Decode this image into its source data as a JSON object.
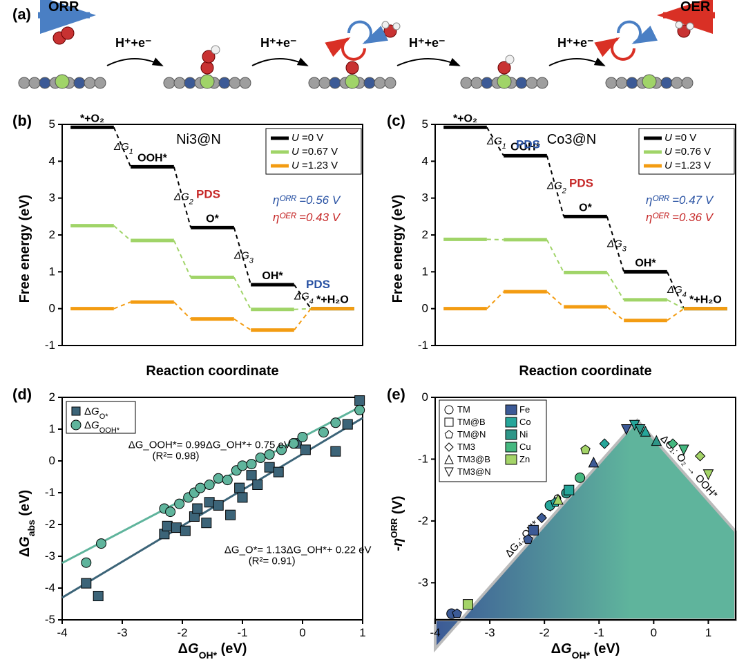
{
  "panel_a": {
    "label": "(a)",
    "orr_label": "ORR",
    "oer_label": "OER",
    "step_label": "H⁺+e⁻",
    "orr_arrow_color": "#4a7fc4",
    "oer_arrow_color": "#d93025",
    "atom_colors": {
      "oxygen": "#c83232",
      "hydrogen": "#f0f0f0",
      "metal": "#a0d468",
      "nitrogen": "#3c5a96",
      "carbon": "#9e9e9e"
    }
  },
  "panel_b": {
    "label": "(b)",
    "title": "Ni3@N",
    "xlabel": "Reaction coordinate",
    "ylabel": "Free energy (eV)",
    "ylim": [
      -1,
      5
    ],
    "yticks": [
      -1,
      0,
      1,
      2,
      3,
      4,
      5
    ],
    "legend": [
      {
        "label": "U =0 V",
        "color": "#000000"
      },
      {
        "label": "U =0.67 V",
        "color": "#a0d468"
      },
      {
        "label": "U =1.23 V",
        "color": "#f39c12"
      }
    ],
    "species": [
      "*+O₂",
      "OOH*",
      "O*",
      "OH*",
      "*+H₂O"
    ],
    "dg_labels": [
      "ΔG₁",
      "ΔG₂",
      "ΔG₃",
      "ΔG₄"
    ],
    "pds_orr_label": "PDS",
    "pds_oer_label": "PDS",
    "eta_orr": "ηᴼᴿᴿ =0.56 V",
    "eta_oer": "ηᴼᴱᴿ =0.43 V",
    "eta_orr_color": "#2952a3",
    "eta_oer_color": "#c62828",
    "series": {
      "U0": [
        4.92,
        3.85,
        2.2,
        0.65,
        0.0
      ],
      "U067": [
        2.25,
        1.85,
        0.85,
        -0.02,
        0.0
      ],
      "U123": [
        0.0,
        0.18,
        -0.28,
        -0.58,
        0.0
      ]
    },
    "colors": {
      "U0": "#000000",
      "U067": "#a0d468",
      "U123": "#f39c12"
    },
    "grid_color": "#e0e0e0",
    "line_width": 4
  },
  "panel_c": {
    "label": "(c)",
    "title": "Co3@N",
    "xlabel": "Reaction coordinate",
    "ylabel": "Free energy (eV)",
    "ylim": [
      -1,
      5
    ],
    "yticks": [
      -1,
      0,
      1,
      2,
      3,
      4,
      5
    ],
    "legend": [
      {
        "label": "U =0 V",
        "color": "#000000"
      },
      {
        "label": "U =0.76 V",
        "color": "#a0d468"
      },
      {
        "label": "U =1.23 V",
        "color": "#f39c12"
      }
    ],
    "species": [
      "*+O₂",
      "OOH*",
      "O*",
      "OH*",
      "*+H₂O"
    ],
    "dg_labels": [
      "ΔG₁",
      "ΔG₂",
      "ΔG₃",
      "ΔG₄"
    ],
    "pds_orr_label": "PDS",
    "pds_oer_label": "PDS",
    "eta_orr": "ηᴼᴿᴿ =0.47 V",
    "eta_oer": "ηᴼᴱᴿ =0.36 V",
    "eta_orr_color": "#2952a3",
    "eta_oer_color": "#c62828",
    "series": {
      "U0": [
        4.92,
        4.15,
        2.5,
        1.0,
        0.0
      ],
      "U076": [
        1.88,
        1.87,
        0.98,
        0.24,
        0.0
      ],
      "U123": [
        0.0,
        0.46,
        0.05,
        -0.32,
        0.0
      ]
    },
    "colors": {
      "U0": "#000000",
      "U076": "#a0d468",
      "U123": "#f39c12"
    },
    "grid_color": "#e0e0e0",
    "line_width": 4
  },
  "panel_d": {
    "label": "(d)",
    "xlabel": "ΔG_OH* (eV)",
    "ylabel": "ΔG_abs (eV)",
    "xlim": [
      -4,
      1
    ],
    "ylim": [
      -5,
      2
    ],
    "xticks": [
      -4,
      -3,
      -2,
      -1,
      0,
      1
    ],
    "yticks": [
      -5,
      -4,
      -3,
      -2,
      -1,
      0,
      1,
      2
    ],
    "legend": [
      {
        "label": "ΔG_O*",
        "marker": "square",
        "color": "#3c6478"
      },
      {
        "label": "ΔG_OOH*",
        "marker": "circle",
        "color": "#5fb49c"
      }
    ],
    "fit_ooh": "ΔG_OOH*= 0.99ΔG_OH*+ 0.75 eV",
    "fit_ooh_r2": "(R²= 0.98)",
    "fit_o": "ΔG_O*= 1.13ΔG_OH*+ 0.22 eV",
    "fit_o_r2": "(R²= 0.91)",
    "line_o": {
      "slope": 1.13,
      "intercept": 0.22,
      "color": "#3c6478"
    },
    "line_ooh": {
      "slope": 0.99,
      "intercept": 0.75,
      "color": "#5fb49c"
    },
    "points_o": [
      [
        -3.6,
        -3.85
      ],
      [
        -3.4,
        -4.25
      ],
      [
        -2.3,
        -2.3
      ],
      [
        -2.25,
        -2.05
      ],
      [
        -2.1,
        -2.1
      ],
      [
        -1.95,
        -2.2
      ],
      [
        -1.8,
        -1.75
      ],
      [
        -1.75,
        -1.5
      ],
      [
        -1.6,
        -1.95
      ],
      [
        -1.55,
        -1.3
      ],
      [
        -1.4,
        -1.4
      ],
      [
        -1.2,
        -1.7
      ],
      [
        -1.05,
        -0.85
      ],
      [
        -1.0,
        -1.15
      ],
      [
        -0.85,
        -0.45
      ],
      [
        -0.75,
        -0.75
      ],
      [
        -0.55,
        -0.2
      ],
      [
        -0.4,
        -0.35
      ],
      [
        -0.1,
        0.55
      ],
      [
        0.05,
        0.35
      ],
      [
        0.55,
        0.3
      ],
      [
        0.95,
        1.9
      ],
      [
        0.75,
        1.15
      ]
    ],
    "points_ooh": [
      [
        -3.6,
        -3.2
      ],
      [
        -3.35,
        -2.6
      ],
      [
        -2.3,
        -1.5
      ],
      [
        -2.2,
        -1.6
      ],
      [
        -2.05,
        -1.35
      ],
      [
        -1.9,
        -1.15
      ],
      [
        -1.8,
        -1.0
      ],
      [
        -1.7,
        -0.85
      ],
      [
        -1.55,
        -0.75
      ],
      [
        -1.4,
        -0.55
      ],
      [
        -1.25,
        -0.6
      ],
      [
        -1.1,
        -0.3
      ],
      [
        -1.0,
        -0.15
      ],
      [
        -0.85,
        -0.1
      ],
      [
        -0.7,
        0.1
      ],
      [
        -0.55,
        0.2
      ],
      [
        -0.35,
        0.35
      ],
      [
        -0.15,
        0.55
      ],
      [
        0.0,
        0.75
      ],
      [
        0.35,
        0.9
      ],
      [
        0.55,
        1.2
      ],
      [
        0.95,
        1.6
      ]
    ],
    "marker_size": 7
  },
  "panel_e": {
    "label": "(e)",
    "xlabel": "ΔG_OH* (eV)",
    "ylabel": "-ηᴼᴿᴿ (V)",
    "xlim": [
      -4,
      1.5
    ],
    "ylim": [
      -3.6,
      0
    ],
    "xticks": [
      -4,
      -3,
      -2,
      -1,
      0,
      1
    ],
    "yticks": [
      0,
      -1,
      -2,
      -3
    ],
    "legend_shapes": [
      {
        "label": "TM",
        "shape": "circle"
      },
      {
        "label": "TM@B",
        "shape": "square"
      },
      {
        "label": "TM@N",
        "shape": "pentagon"
      },
      {
        "label": "TM3",
        "shape": "diamond"
      },
      {
        "label": "TM3@B",
        "shape": "triangle-up"
      },
      {
        "label": "TM3@N",
        "shape": "triangle-down"
      }
    ],
    "legend_colors": [
      {
        "label": "Fe",
        "color": "#3c5a96"
      },
      {
        "label": "Co",
        "color": "#26a69a"
      },
      {
        "label": "Ni",
        "color": "#2e9688"
      },
      {
        "label": "Cu",
        "color": "#45b880"
      },
      {
        "label": "Zn",
        "color": "#a4d468"
      }
    ],
    "ridge_left_label": "ΔG₄: OH* → H₂O",
    "ridge_right_label": "ΔG₁: O₂ → OOH*",
    "volcano_apex": [
      -0.3,
      -0.37
    ],
    "volcano_left_slope": 1.0,
    "volcano_right_slope": -1.0,
    "gradient_left": "#3c5a96",
    "gradient_right": "#5fb49c",
    "points": [
      {
        "x": -3.7,
        "y": -3.5,
        "shape": "circle",
        "color": "#3c5a96"
      },
      {
        "x": -3.6,
        "y": -3.5,
        "shape": "pentagon",
        "color": "#3c5a96"
      },
      {
        "x": -3.4,
        "y": -3.35,
        "shape": "square",
        "color": "#a4d468"
      },
      {
        "x": -2.3,
        "y": -2.3,
        "shape": "pentagon",
        "color": "#3c5a96"
      },
      {
        "x": -2.2,
        "y": -2.15,
        "shape": "square",
        "color": "#3c5a96"
      },
      {
        "x": -2.05,
        "y": -1.95,
        "shape": "diamond",
        "color": "#3c5a96"
      },
      {
        "x": -1.9,
        "y": -1.75,
        "shape": "circle",
        "color": "#26a69a"
      },
      {
        "x": -1.8,
        "y": -1.7,
        "shape": "pentagon",
        "color": "#26a69a"
      },
      {
        "x": -1.75,
        "y": -1.65,
        "shape": "triangle-up",
        "color": "#a4d468"
      },
      {
        "x": -1.6,
        "y": -1.55,
        "shape": "circle",
        "color": "#2e9688"
      },
      {
        "x": -1.55,
        "y": -1.5,
        "shape": "square",
        "color": "#26a69a"
      },
      {
        "x": -1.35,
        "y": -1.3,
        "shape": "circle",
        "color": "#45b880"
      },
      {
        "x": -1.25,
        "y": -0.85,
        "shape": "pentagon",
        "color": "#a4d468"
      },
      {
        "x": -1.1,
        "y": -1.05,
        "shape": "triangle-up",
        "color": "#3c5a96"
      },
      {
        "x": -0.9,
        "y": -0.75,
        "shape": "diamond",
        "color": "#26a69a"
      },
      {
        "x": -0.5,
        "y": -0.52,
        "shape": "triangle-down",
        "color": "#3c5a96"
      },
      {
        "x": -0.35,
        "y": -0.45,
        "shape": "triangle-down",
        "color": "#26a69a"
      },
      {
        "x": -0.25,
        "y": -0.52,
        "shape": "triangle-down",
        "color": "#2e9688"
      },
      {
        "x": -0.15,
        "y": -0.55,
        "shape": "triangle-up",
        "color": "#26a69a"
      },
      {
        "x": 0.05,
        "y": -0.7,
        "shape": "triangle-up",
        "color": "#2e9688"
      },
      {
        "x": 0.35,
        "y": -0.75,
        "shape": "diamond",
        "color": "#45b880"
      },
      {
        "x": 0.55,
        "y": -0.85,
        "shape": "triangle-down",
        "color": "#45b880"
      },
      {
        "x": 0.85,
        "y": -0.95,
        "shape": "diamond",
        "color": "#a4d468"
      },
      {
        "x": 1.0,
        "y": -1.25,
        "shape": "triangle-down",
        "color": "#a4d468"
      }
    ]
  }
}
